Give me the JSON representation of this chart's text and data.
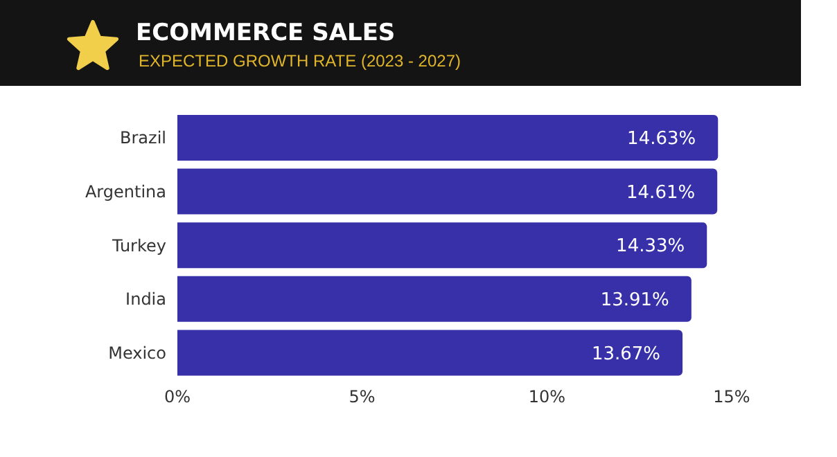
{
  "chart_data": {
    "type": "bar",
    "orientation": "horizontal",
    "title": "ECOMMERCE SALES",
    "subtitle": "EXPECTED GROWTH RATE (2023 - 2027)",
    "categories": [
      "Brazil",
      "Argentina",
      "Turkey",
      "India",
      "Mexico"
    ],
    "values": [
      14.63,
      14.61,
      14.33,
      13.91,
      13.67
    ],
    "value_labels": [
      "14.63%",
      "14.61%",
      "14.33%",
      "13.91%",
      "13.67%"
    ],
    "color": "#3730a9",
    "xlim": [
      0,
      15
    ],
    "xticks": [
      {
        "value": 0,
        "label": "0%"
      },
      {
        "value": 5,
        "label": "5%"
      },
      {
        "value": 10,
        "label": "10%"
      },
      {
        "value": 15,
        "label": "15%"
      }
    ],
    "grid": false,
    "legend": false
  }
}
